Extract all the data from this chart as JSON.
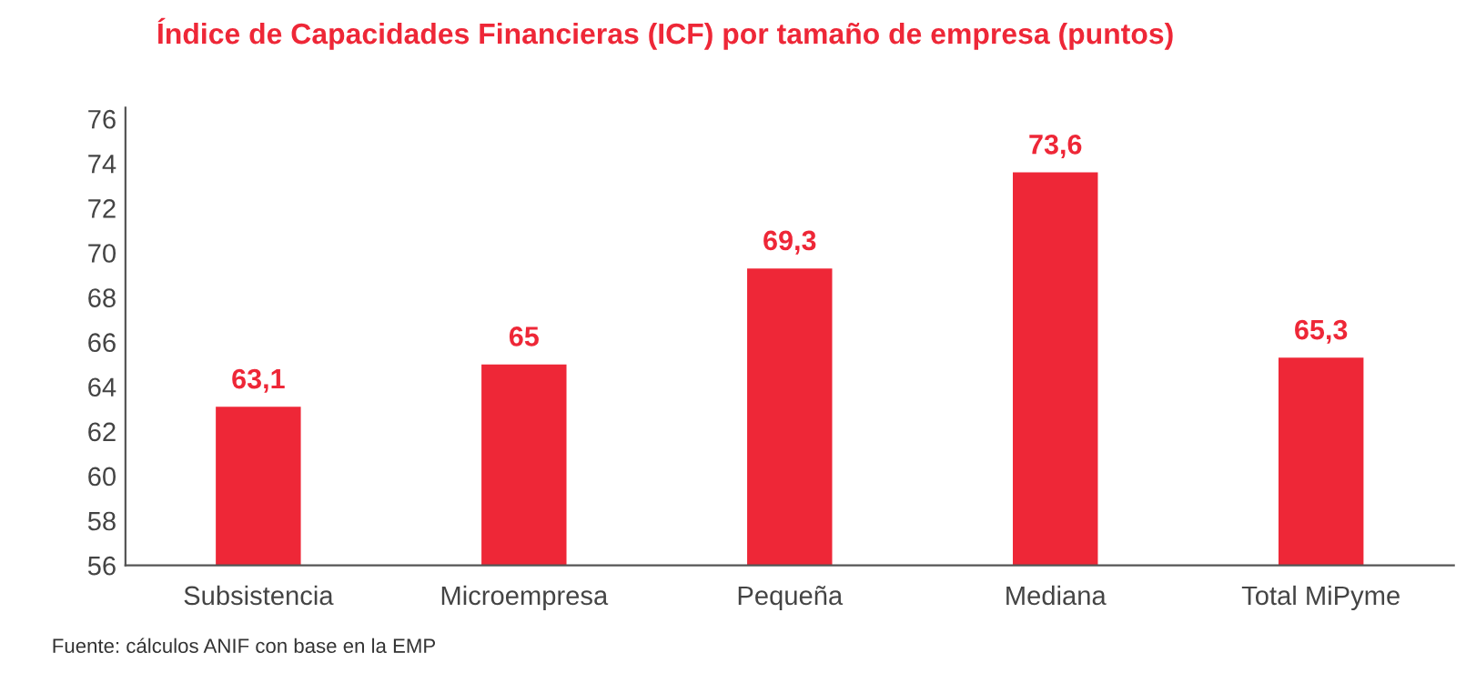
{
  "chart_data": {
    "type": "bar",
    "title": "Índice de Capacidades Financieras (ICF) por tamaño de empresa (puntos)",
    "categories": [
      "Subsistencia",
      "Microempresa",
      "Pequeña",
      "Mediana",
      "Total MiPyme"
    ],
    "values": [
      63.1,
      65,
      69.3,
      73.6,
      65.3
    ],
    "value_labels": [
      "63,1",
      "65",
      "69,3",
      "73,6",
      "65,3"
    ],
    "color": "#ee2737",
    "ylim": [
      56,
      76.5
    ],
    "yticks": [
      56,
      58,
      60,
      62,
      64,
      66,
      68,
      70,
      72,
      74,
      76
    ],
    "grid": false,
    "legend": false,
    "annotations": [
      "Fuente: cálculos ANIF con base en la EMP"
    ]
  }
}
